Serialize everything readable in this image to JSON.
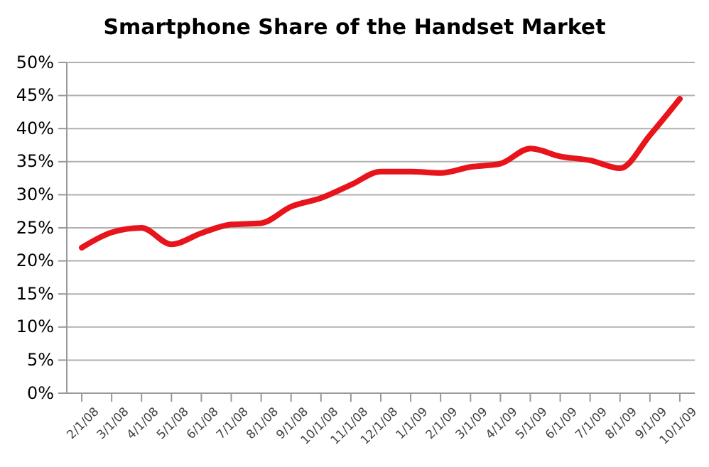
{
  "chart_data": {
    "type": "line",
    "title": "Smartphone Share of the Handset Market",
    "categories": [
      "2/1/08",
      "3/1/08",
      "4/1/08",
      "5/1/08",
      "6/1/08",
      "7/1/08",
      "8/1/08",
      "9/1/08",
      "10/1/08",
      "11/1/08",
      "12/1/08",
      "1/1/09",
      "2/1/09",
      "3/1/09",
      "4/1/09",
      "5/1/09",
      "6/1/09",
      "7/1/09",
      "8/1/09",
      "9/1/09",
      "10/1/09"
    ],
    "series": [
      {
        "color": "#e8141b",
        "values": [
          22,
          24.3,
          25,
          22.5,
          24.2,
          25.5,
          25.7,
          28.2,
          29.5,
          31.5,
          33.5,
          33.5,
          33.3,
          34.2,
          34.7,
          37,
          35.8,
          35.2,
          34,
          39,
          44.5
        ]
      }
    ],
    "ylim": [
      0,
      50
    ],
    "yticks": [
      {
        "value": 0,
        "label": "0%"
      },
      {
        "value": 5,
        "label": "5%"
      },
      {
        "value": 10,
        "label": "10%"
      },
      {
        "value": 15,
        "label": "15%"
      },
      {
        "value": 20,
        "label": "20%"
      },
      {
        "value": 25,
        "label": "25%"
      },
      {
        "value": 30,
        "label": "30%"
      },
      {
        "value": 35,
        "label": "35%"
      },
      {
        "value": 40,
        "label": "40%"
      },
      {
        "value": 45,
        "label": "45%"
      },
      {
        "value": 50,
        "label": "50%"
      }
    ],
    "grid": "y",
    "marker": "none",
    "line_style": "solid"
  }
}
